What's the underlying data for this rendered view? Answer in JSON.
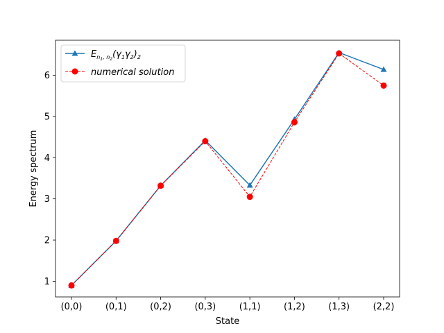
{
  "chart_data": {
    "type": "line",
    "xlabel": "State",
    "ylabel": "Energy spectrum",
    "categories": [
      "(0,0)",
      "(0,1)",
      "(0,2)",
      "(0,3)",
      "(1,1)",
      "(1,2)",
      "(1,3)",
      "(2,2)"
    ],
    "ylim": [
      0.62,
      6.85
    ],
    "yticks": [
      1,
      2,
      3,
      4,
      5,
      6
    ],
    "grid": false,
    "legend_position": "upper-left",
    "series": [
      {
        "name": "E_{n1,n2}(γ1γ2)2",
        "color": "#1f77b4",
        "linestyle": "solid",
        "marker": "triangle",
        "values": [
          0.9,
          1.98,
          3.32,
          4.42,
          3.33,
          4.93,
          6.55,
          6.14
        ]
      },
      {
        "name": "numerical solution",
        "color": "#ff0000",
        "linestyle": "dashed",
        "marker": "circle",
        "values": [
          0.9,
          1.98,
          3.32,
          4.4,
          3.05,
          4.86,
          6.53,
          5.75
        ]
      }
    ]
  }
}
